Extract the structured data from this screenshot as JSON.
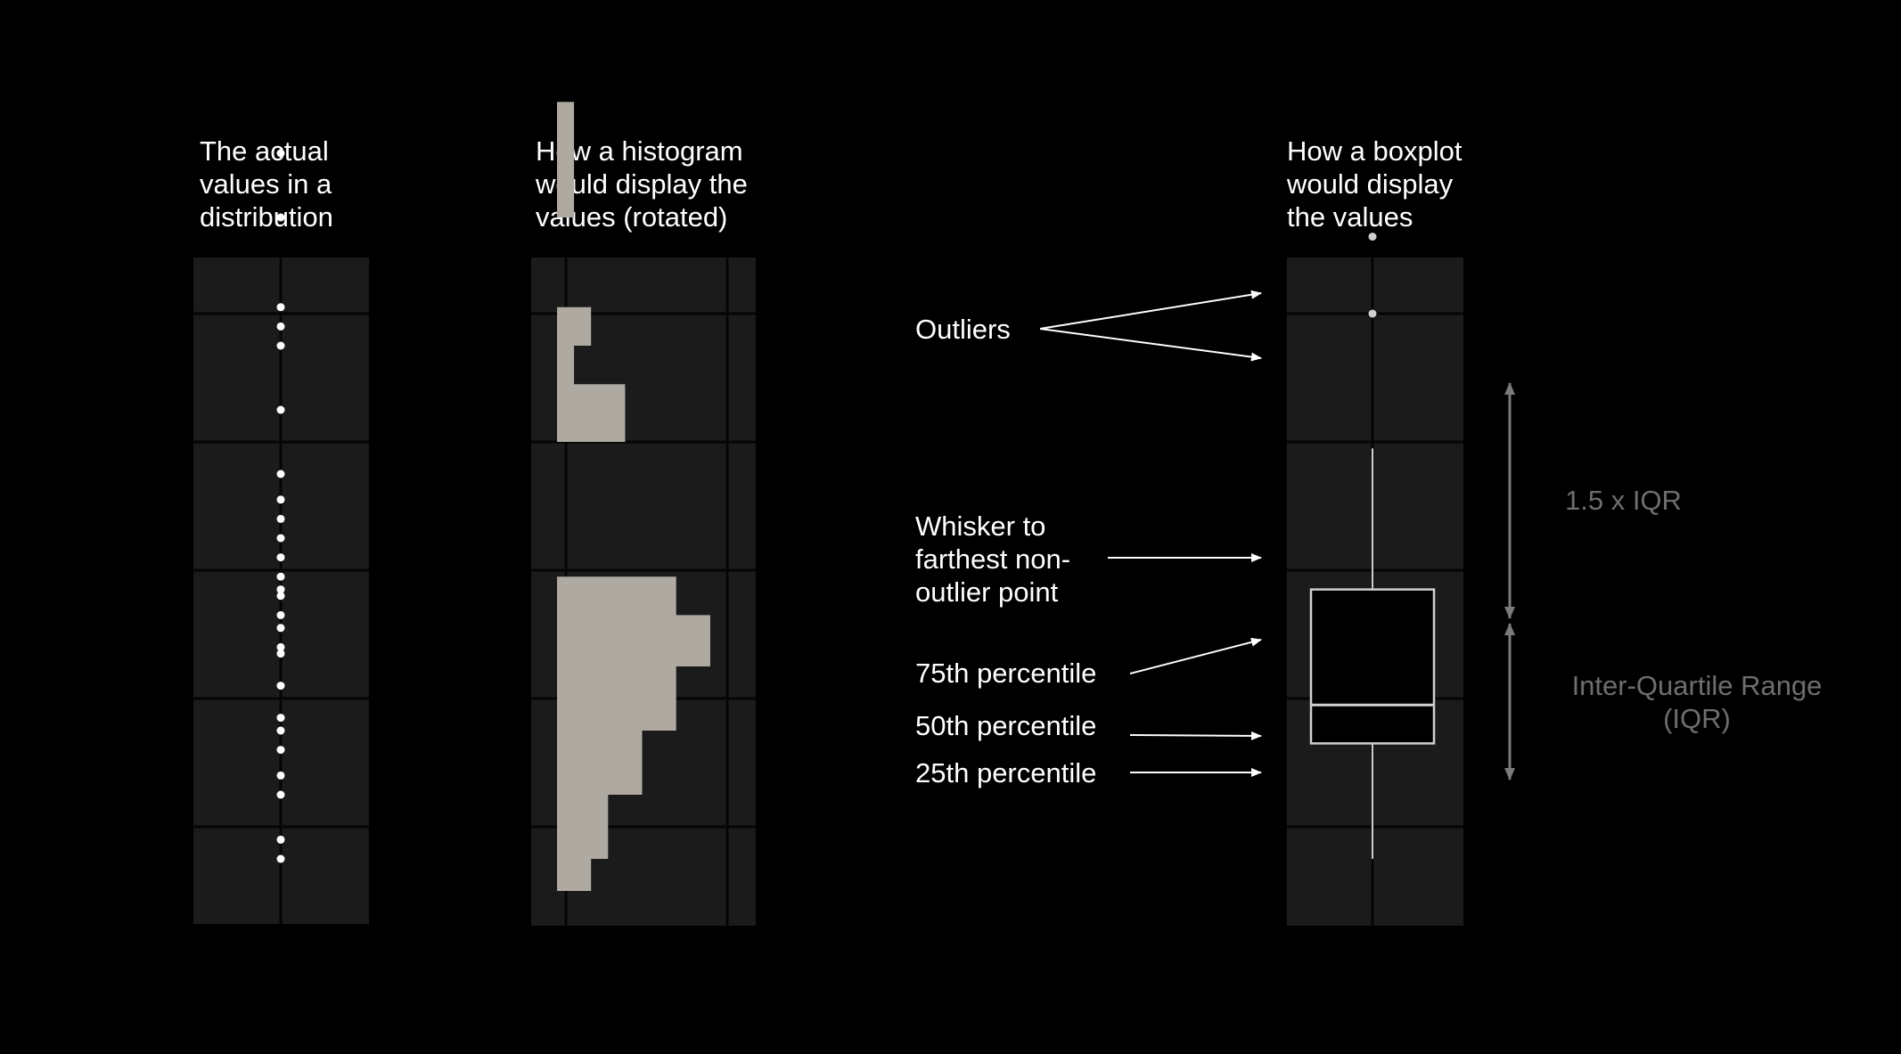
{
  "headings": {
    "distribution": [
      "The actual",
      "values in a",
      "distribution"
    ],
    "histogram": [
      "How a histogram",
      "would display the",
      "values (rotated)"
    ],
    "boxplot": [
      "How a boxplot",
      "would display",
      "the values"
    ]
  },
  "annotations": {
    "outliers": [
      "Outliers"
    ],
    "whisker": [
      "Whisker to",
      "farthest non-",
      "outlier point"
    ],
    "p75": [
      "75th percentile"
    ],
    "p50": [
      "50th percentile"
    ],
    "p25": [
      "25th percentile"
    ],
    "iqr_range": [
      "1.5 x IQR"
    ],
    "iqr": [
      "Inter-Quartile Range",
      "(IQR)"
    ]
  },
  "colors": {
    "background": "#000000",
    "panel": "#1b1b1b",
    "grid": "#050505",
    "bar": "#aeaaa2",
    "dot": "#ffffff",
    "box_line": "#cfcfcf",
    "dim_text": "#6e6e6e",
    "dim_arrow": "#7a7a7a"
  },
  "chart_data": {
    "type": "diagram",
    "ylim": [
      0,
      10
    ],
    "gridlines": [
      1,
      3,
      5,
      7,
      9
    ],
    "points": [
      0.5,
      0.8,
      1.5,
      1.8,
      2.2,
      2.5,
      2.7,
      3.2,
      3.7,
      3.8,
      4.1,
      4.3,
      4.6,
      4.7,
      4.9,
      5.2,
      5.5,
      5.8,
      6.1,
      6.5,
      7.5,
      8.5,
      8.8,
      9.1,
      10.5,
      11.5
    ],
    "histogram_bins": [
      {
        "y_from": 0.0,
        "y_to": 0.5,
        "count": 2
      },
      {
        "y_from": 0.5,
        "y_to": 1.5,
        "count": 3
      },
      {
        "y_from": 1.5,
        "y_to": 2.5,
        "count": 5
      },
      {
        "y_from": 2.5,
        "y_to": 3.5,
        "count": 7
      },
      {
        "y_from": 3.5,
        "y_to": 4.3,
        "count": 9
      },
      {
        "y_from": 4.3,
        "y_to": 4.9,
        "count": 7
      },
      {
        "y_from": 7.0,
        "y_to": 7.9,
        "count": 4
      },
      {
        "y_from": 7.9,
        "y_to": 8.5,
        "count": 1
      },
      {
        "y_from": 8.5,
        "y_to": 9.1,
        "count": 2
      },
      {
        "y_from": 10.5,
        "y_to": 12.3,
        "count": 1
      }
    ],
    "histogram_xlim": [
      0,
      10
    ],
    "boxplot": {
      "whisker_low": 0.5,
      "q1": 2.3,
      "median": 2.9,
      "q3": 4.7,
      "whisker_high": 6.9,
      "outliers": [
        9.0,
        10.2
      ]
    }
  }
}
